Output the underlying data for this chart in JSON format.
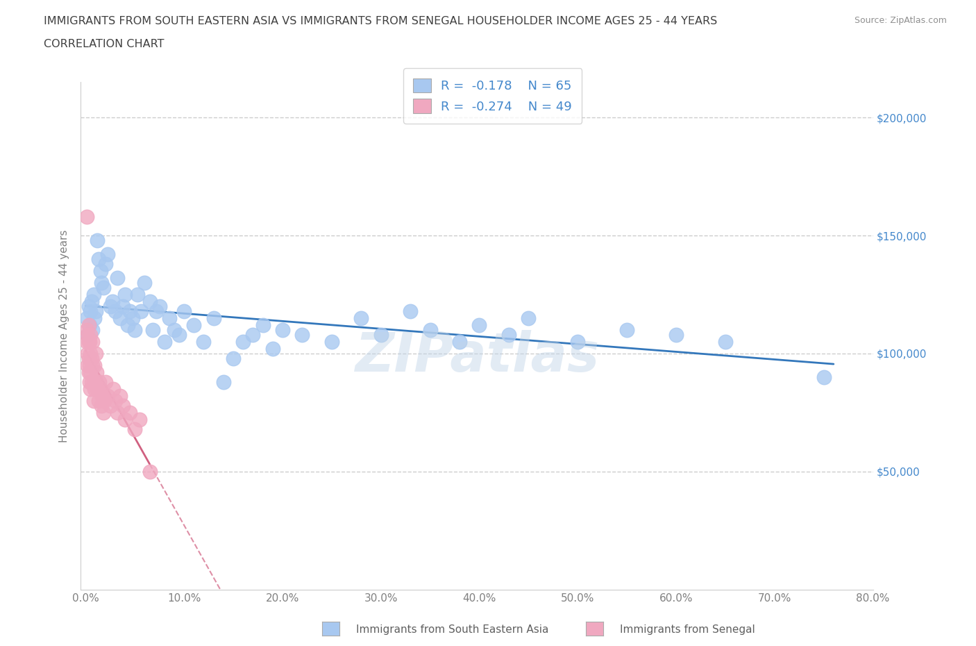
{
  "title_line1": "IMMIGRANTS FROM SOUTH EASTERN ASIA VS IMMIGRANTS FROM SENEGAL HOUSEHOLDER INCOME AGES 25 - 44 YEARS",
  "title_line2": "CORRELATION CHART",
  "source_text": "Source: ZipAtlas.com",
  "ylabel": "Householder Income Ages 25 - 44 years",
  "watermark": "ZIPatlas",
  "series_asia": {
    "name": "Immigrants from South Eastern Asia",
    "color": "#a8c8f0",
    "line_color": "#3377bb",
    "R": -0.178,
    "N": 65,
    "x": [
      0.001,
      0.002,
      0.003,
      0.004,
      0.005,
      0.006,
      0.007,
      0.008,
      0.009,
      0.01,
      0.012,
      0.013,
      0.015,
      0.016,
      0.018,
      0.02,
      0.022,
      0.025,
      0.027,
      0.03,
      0.032,
      0.035,
      0.038,
      0.04,
      0.043,
      0.045,
      0.048,
      0.05,
      0.053,
      0.056,
      0.06,
      0.065,
      0.068,
      0.072,
      0.075,
      0.08,
      0.085,
      0.09,
      0.095,
      0.1,
      0.11,
      0.12,
      0.13,
      0.14,
      0.15,
      0.16,
      0.17,
      0.18,
      0.19,
      0.2,
      0.22,
      0.25,
      0.28,
      0.3,
      0.33,
      0.35,
      0.38,
      0.4,
      0.43,
      0.45,
      0.5,
      0.55,
      0.6,
      0.65,
      0.75
    ],
    "y": [
      115000,
      108000,
      120000,
      112000,
      118000,
      122000,
      110000,
      125000,
      115000,
      118000,
      148000,
      140000,
      135000,
      130000,
      128000,
      138000,
      142000,
      120000,
      122000,
      118000,
      132000,
      115000,
      120000,
      125000,
      112000,
      118000,
      115000,
      110000,
      125000,
      118000,
      130000,
      122000,
      110000,
      118000,
      120000,
      105000,
      115000,
      110000,
      108000,
      118000,
      112000,
      105000,
      115000,
      88000,
      98000,
      105000,
      108000,
      112000,
      102000,
      110000,
      108000,
      105000,
      115000,
      108000,
      118000,
      110000,
      105000,
      112000,
      108000,
      115000,
      105000,
      110000,
      108000,
      105000,
      90000
    ]
  },
  "series_senegal": {
    "name": "Immigrants from Senegal",
    "color": "#f0a8c0",
    "line_color": "#d06080",
    "R": -0.274,
    "N": 49,
    "x": [
      0.001,
      0.001,
      0.001,
      0.002,
      0.002,
      0.002,
      0.003,
      0.003,
      0.003,
      0.003,
      0.004,
      0.004,
      0.004,
      0.005,
      0.005,
      0.005,
      0.005,
      0.006,
      0.006,
      0.007,
      0.007,
      0.008,
      0.008,
      0.009,
      0.009,
      0.01,
      0.01,
      0.011,
      0.012,
      0.013,
      0.014,
      0.015,
      0.016,
      0.017,
      0.018,
      0.019,
      0.02,
      0.022,
      0.025,
      0.028,
      0.03,
      0.032,
      0.035,
      0.038,
      0.04,
      0.045,
      0.05,
      0.055,
      0.065
    ],
    "y": [
      158000,
      110000,
      105000,
      108000,
      100000,
      95000,
      112000,
      105000,
      98000,
      92000,
      105000,
      95000,
      88000,
      108000,
      100000,
      92000,
      85000,
      98000,
      88000,
      105000,
      95000,
      88000,
      80000,
      95000,
      85000,
      100000,
      88000,
      92000,
      85000,
      80000,
      88000,
      85000,
      78000,
      82000,
      75000,
      80000,
      88000,
      82000,
      78000,
      85000,
      80000,
      75000,
      82000,
      78000,
      72000,
      75000,
      68000,
      72000,
      50000
    ]
  },
  "xlim": [
    -0.005,
    0.8
  ],
  "ylim": [
    0,
    215000
  ],
  "yticks": [
    0,
    50000,
    100000,
    150000,
    200000
  ],
  "xticks": [
    0.0,
    0.1,
    0.2,
    0.3,
    0.4,
    0.5,
    0.6,
    0.7,
    0.8
  ],
  "xtick_labels": [
    "0.0%",
    "10.0%",
    "20.0%",
    "30.0%",
    "40.0%",
    "50.0%",
    "60.0%",
    "70.0%",
    "80.0%"
  ],
  "ytick_right_labels": [
    "",
    "$50,000",
    "$100,000",
    "$150,000",
    "$200,000"
  ],
  "background_color": "#ffffff",
  "grid_color": "#c8c8c8",
  "title_color": "#404040",
  "tick_color": "#808080",
  "legend_text_color": "#4488cc",
  "watermark_color": "#c0d4e8",
  "watermark_alpha": 0.45,
  "bottom_legend_color": "#606060"
}
